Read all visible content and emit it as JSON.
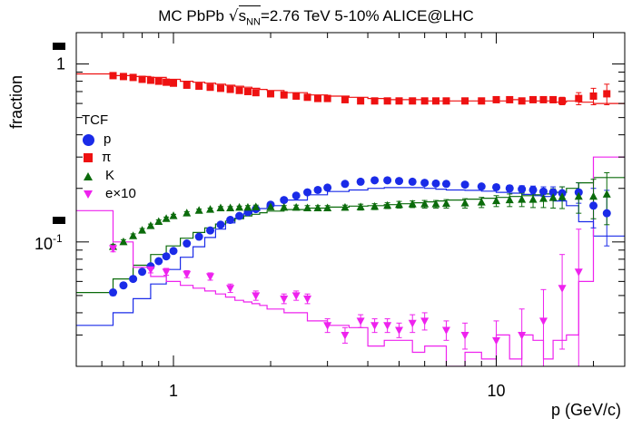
{
  "title": {
    "prefix": "MC PbPb ",
    "sqrt": "√",
    "s": "s",
    "sub": "NN",
    "suffix": "=2.76 TeV 5-10% ALICE@LHC"
  },
  "ylabel": "fraction",
  "xlabel": "p (GeV/c)",
  "legend": {
    "title": "TCF",
    "entries": [
      {
        "label": "p",
        "marker": "circle",
        "color": "#1a2be8"
      },
      {
        "label": "π",
        "marker": "square",
        "color": "#ee1111"
      },
      {
        "label": "K",
        "marker": "triangle-up",
        "color": "#0b6b0b"
      },
      {
        "label": "e×10",
        "marker": "triangle-down",
        "color": "#ee22ee"
      }
    ]
  },
  "chart_data": {
    "type": "scatter",
    "x_scale": "log",
    "y_scale": "log",
    "xlim": [
      0.5,
      25
    ],
    "ylim": [
      0.02,
      1.5
    ],
    "x_tick_labels": [
      "1",
      "10"
    ],
    "y_tick_labels": [
      "1",
      "10^-1"
    ],
    "series": [
      {
        "name": "p",
        "marker": "circle",
        "color": "#1a2be8",
        "x": [
          0.65,
          0.7,
          0.75,
          0.8,
          0.85,
          0.9,
          0.95,
          1.0,
          1.1,
          1.2,
          1.3,
          1.4,
          1.5,
          1.6,
          1.7,
          1.8,
          2.0,
          2.2,
          2.4,
          2.6,
          2.8,
          3.0,
          3.4,
          3.8,
          4.2,
          4.6,
          5.0,
          5.5,
          6.0,
          6.5,
          7.0,
          8.0,
          9.0,
          10.0,
          11.0,
          12.0,
          13.0,
          14.0,
          15.0,
          16.0,
          18.0,
          20.0,
          22.0
        ],
        "y": [
          0.052,
          0.057,
          0.062,
          0.068,
          0.073,
          0.078,
          0.083,
          0.089,
          0.098,
          0.107,
          0.116,
          0.125,
          0.133,
          0.14,
          0.147,
          0.153,
          0.162,
          0.172,
          0.182,
          0.19,
          0.196,
          0.202,
          0.212,
          0.218,
          0.222,
          0.222,
          0.22,
          0.218,
          0.215,
          0.213,
          0.212,
          0.21,
          0.205,
          0.203,
          0.2,
          0.198,
          0.196,
          0.192,
          0.19,
          0.188,
          0.19,
          0.16,
          0.145
        ],
        "err": [
          0.002,
          0.002,
          0.002,
          0.002,
          0.002,
          0.002,
          0.002,
          0.002,
          0.002,
          0.002,
          0.002,
          0.002,
          0.002,
          0.002,
          0.003,
          0.003,
          0.003,
          0.003,
          0.003,
          0.003,
          0.003,
          0.003,
          0.003,
          0.003,
          0.003,
          0.003,
          0.003,
          0.003,
          0.004,
          0.004,
          0.004,
          0.005,
          0.006,
          0.007,
          0.008,
          0.009,
          0.01,
          0.012,
          0.014,
          0.016,
          0.025,
          0.04,
          0.05
        ]
      },
      {
        "name": "π",
        "marker": "square",
        "color": "#ee1111",
        "x": [
          0.65,
          0.7,
          0.75,
          0.8,
          0.85,
          0.9,
          0.95,
          1.0,
          1.1,
          1.2,
          1.3,
          1.4,
          1.5,
          1.6,
          1.7,
          1.8,
          2.0,
          2.2,
          2.4,
          2.6,
          2.8,
          3.0,
          3.4,
          3.8,
          4.2,
          4.6,
          5.0,
          5.5,
          6.0,
          6.5,
          7.0,
          8.0,
          9.0,
          10.0,
          11.0,
          12.0,
          13.0,
          14.0,
          15.0,
          16.0,
          18.0,
          20.0,
          22.0
        ],
        "y": [
          0.86,
          0.85,
          0.84,
          0.82,
          0.81,
          0.8,
          0.79,
          0.78,
          0.76,
          0.75,
          0.74,
          0.73,
          0.72,
          0.71,
          0.7,
          0.69,
          0.68,
          0.67,
          0.66,
          0.65,
          0.64,
          0.64,
          0.63,
          0.62,
          0.62,
          0.62,
          0.62,
          0.62,
          0.62,
          0.62,
          0.62,
          0.62,
          0.62,
          0.63,
          0.63,
          0.62,
          0.63,
          0.63,
          0.63,
          0.62,
          0.64,
          0.66,
          0.68
        ],
        "err": [
          0.005,
          0.005,
          0.005,
          0.005,
          0.005,
          0.005,
          0.005,
          0.005,
          0.005,
          0.005,
          0.005,
          0.005,
          0.005,
          0.005,
          0.005,
          0.005,
          0.006,
          0.006,
          0.006,
          0.006,
          0.006,
          0.006,
          0.007,
          0.007,
          0.008,
          0.008,
          0.009,
          0.009,
          0.01,
          0.01,
          0.011,
          0.012,
          0.013,
          0.014,
          0.015,
          0.016,
          0.018,
          0.02,
          0.025,
          0.03,
          0.05,
          0.07,
          0.09
        ]
      },
      {
        "name": "K",
        "marker": "triangle-up",
        "color": "#0b6b0b",
        "x": [
          0.65,
          0.7,
          0.75,
          0.8,
          0.85,
          0.9,
          0.95,
          1.0,
          1.1,
          1.2,
          1.3,
          1.4,
          1.5,
          1.6,
          1.7,
          1.8,
          2.0,
          2.2,
          2.4,
          2.6,
          2.8,
          3.0,
          3.4,
          3.8,
          4.2,
          4.6,
          5.0,
          5.5,
          6.0,
          6.5,
          7.0,
          8.0,
          9.0,
          10.0,
          11.0,
          12.0,
          13.0,
          14.0,
          15.0,
          16.0,
          18.0,
          20.0,
          22.0
        ],
        "y": [
          0.094,
          0.1,
          0.108,
          0.116,
          0.123,
          0.13,
          0.135,
          0.14,
          0.145,
          0.15,
          0.152,
          0.155,
          0.155,
          0.156,
          0.156,
          0.157,
          0.157,
          0.156,
          0.156,
          0.155,
          0.155,
          0.155,
          0.156,
          0.157,
          0.158,
          0.16,
          0.162,
          0.163,
          0.163,
          0.163,
          0.164,
          0.165,
          0.167,
          0.17,
          0.172,
          0.173,
          0.173,
          0.175,
          0.177,
          0.179,
          0.18,
          0.18,
          0.185
        ],
        "err": [
          0.003,
          0.003,
          0.003,
          0.003,
          0.003,
          0.003,
          0.003,
          0.003,
          0.003,
          0.003,
          0.003,
          0.003,
          0.003,
          0.003,
          0.004,
          0.004,
          0.004,
          0.004,
          0.005,
          0.005,
          0.005,
          0.005,
          0.005,
          0.006,
          0.006,
          0.006,
          0.007,
          0.007,
          0.008,
          0.008,
          0.009,
          0.01,
          0.011,
          0.012,
          0.014,
          0.015,
          0.017,
          0.019,
          0.022,
          0.025,
          0.035,
          0.045,
          0.06
        ]
      },
      {
        "name": "e×10",
        "marker": "triangle-down",
        "color": "#ee22ee",
        "x": [
          0.65,
          0.85,
          0.95,
          1.1,
          1.3,
          1.5,
          1.8,
          2.2,
          2.4,
          2.6,
          3.0,
          3.4,
          3.8,
          4.2,
          4.6,
          5.0,
          5.5,
          6.0,
          7.0,
          8.0,
          10.0,
          12.0,
          14.0,
          16.0,
          18.0
        ],
        "y": [
          0.092,
          0.07,
          0.068,
          0.066,
          0.064,
          0.055,
          0.05,
          0.048,
          0.05,
          0.048,
          0.034,
          0.03,
          0.036,
          0.034,
          0.034,
          0.032,
          0.035,
          0.036,
          0.032,
          0.03,
          0.028,
          0.03,
          0.036,
          0.055,
          0.068
        ],
        "err": [
          0.004,
          0.003,
          0.003,
          0.003,
          0.003,
          0.003,
          0.003,
          0.003,
          0.003,
          0.003,
          0.003,
          0.003,
          0.003,
          0.003,
          0.003,
          0.003,
          0.004,
          0.004,
          0.004,
          0.005,
          0.008,
          0.012,
          0.018,
          0.03,
          0.05
        ]
      }
    ],
    "histograms": [
      {
        "name": "p",
        "color": "#1a2be8",
        "edges": [
          0.5,
          0.65,
          0.75,
          0.85,
          0.95,
          1.05,
          1.15,
          1.25,
          1.35,
          1.45,
          1.55,
          1.65,
          1.75,
          1.85,
          1.95,
          2.2,
          2.6,
          3.0,
          3.5,
          4.0,
          4.5,
          5.0,
          5.5,
          6.0,
          6.5,
          7.0,
          8.0,
          9.0,
          10.0,
          11.0,
          12.0,
          13.0,
          14.0,
          15.0,
          16.5,
          18.0,
          20.0,
          25.0
        ],
        "y": [
          0.034,
          0.04,
          0.048,
          0.058,
          0.07,
          0.082,
          0.094,
          0.106,
          0.118,
          0.128,
          0.136,
          0.144,
          0.15,
          0.154,
          0.16,
          0.172,
          0.184,
          0.192,
          0.196,
          0.2,
          0.202,
          0.202,
          0.202,
          0.2,
          0.198,
          0.196,
          0.195,
          0.193,
          0.19,
          0.188,
          0.185,
          0.182,
          0.18,
          0.17,
          0.16,
          0.13,
          0.108
        ]
      },
      {
        "name": "π",
        "color": "#ee1111",
        "edges": [
          0.5,
          0.65,
          0.75,
          0.85,
          0.95,
          1.05,
          1.15,
          1.25,
          1.35,
          1.45,
          1.55,
          1.65,
          1.75,
          1.85,
          1.95,
          2.2,
          2.6,
          3.0,
          3.5,
          4.0,
          4.5,
          5.0,
          5.5,
          6.0,
          6.5,
          7.0,
          8.0,
          9.0,
          10.0,
          11.0,
          12.0,
          13.0,
          14.0,
          15.0,
          16.5,
          18.0,
          20.0,
          25.0
        ],
        "y": [
          0.88,
          0.86,
          0.85,
          0.84,
          0.82,
          0.8,
          0.79,
          0.78,
          0.77,
          0.76,
          0.75,
          0.74,
          0.73,
          0.72,
          0.71,
          0.69,
          0.67,
          0.66,
          0.65,
          0.64,
          0.63,
          0.63,
          0.63,
          0.62,
          0.62,
          0.62,
          0.62,
          0.62,
          0.62,
          0.63,
          0.62,
          0.62,
          0.62,
          0.61,
          0.62,
          0.61,
          0.6
        ]
      },
      {
        "name": "K",
        "color": "#0b6b0b",
        "edges": [
          0.5,
          0.65,
          0.75,
          0.85,
          0.95,
          1.05,
          1.15,
          1.25,
          1.35,
          1.45,
          1.55,
          1.65,
          1.75,
          1.85,
          1.95,
          2.2,
          2.6,
          3.0,
          3.5,
          4.0,
          4.5,
          5.0,
          5.5,
          6.0,
          6.5,
          7.0,
          8.0,
          9.0,
          10.0,
          11.0,
          12.0,
          13.0,
          14.0,
          15.0,
          16.5,
          18.0,
          20.0,
          25.0
        ],
        "y": [
          0.052,
          0.062,
          0.074,
          0.085,
          0.095,
          0.105,
          0.113,
          0.12,
          0.126,
          0.131,
          0.135,
          0.14,
          0.143,
          0.146,
          0.149,
          0.152,
          0.155,
          0.157,
          0.159,
          0.16,
          0.162,
          0.164,
          0.166,
          0.168,
          0.17,
          0.172,
          0.174,
          0.176,
          0.178,
          0.18,
          0.182,
          0.184,
          0.186,
          0.19,
          0.2,
          0.215,
          0.23
        ]
      },
      {
        "name": "e×10",
        "color": "#ee22ee",
        "edges": [
          0.5,
          0.65,
          0.75,
          0.85,
          0.95,
          1.05,
          1.15,
          1.25,
          1.35,
          1.45,
          1.55,
          1.65,
          1.75,
          1.85,
          1.95,
          2.2,
          2.6,
          3.0,
          3.5,
          4.0,
          4.5,
          5.0,
          5.5,
          6.0,
          6.5,
          7.0,
          8.0,
          9.0,
          10.0,
          11.0,
          12.0,
          13.0,
          14.0,
          15.0,
          16.5,
          18.0,
          20.0,
          25.0
        ],
        "y": [
          0.15,
          0.1,
          0.072,
          0.064,
          0.06,
          0.057,
          0.055,
          0.053,
          0.051,
          0.049,
          0.047,
          0.046,
          0.045,
          0.044,
          0.042,
          0.04,
          0.036,
          0.034,
          0.033,
          0.026,
          0.028,
          0.028,
          0.024,
          0.026,
          0.026,
          0.02,
          0.024,
          0.022,
          0.03,
          0.022,
          0.03,
          0.028,
          0.022,
          0.028,
          0.03,
          0.06,
          0.3
        ]
      }
    ]
  }
}
